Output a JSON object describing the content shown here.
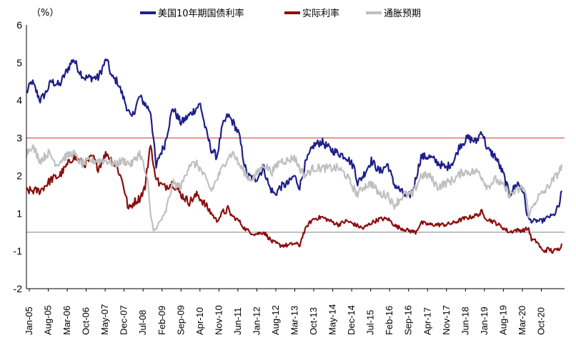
{
  "chart_data": {
    "type": "line",
    "unit_label": "（%）",
    "ylim": [
      -2,
      6
    ],
    "y_ticks": [
      6,
      5,
      4,
      3,
      2,
      1,
      -1,
      -2
    ],
    "x_tick_labels": [
      "Jan-05",
      "Aug-05",
      "Mar-06",
      "Oct-06",
      "May-07",
      "Dec-07",
      "Jul-08",
      "Feb-09",
      "Sep-09",
      "Apr-10",
      "Nov-10",
      "Jun-11",
      "Jan-12",
      "Aug-12",
      "Mar-13",
      "Oct-13",
      "May-14",
      "Dec-14",
      "Jul-15",
      "Feb-16",
      "Sep-16",
      "Apr-17",
      "Nov-17",
      "Jun-18",
      "Jan-19",
      "Aug-19",
      "Mar-20",
      "Oct-20"
    ],
    "x_range": [
      "2005-01",
      "2021-04"
    ],
    "legend_position": "top",
    "grid": false,
    "reference_lines": [
      {
        "value": 3.0,
        "color": "#e06666"
      },
      {
        "value": 0,
        "color": "#999999"
      }
    ],
    "series": [
      {
        "name": "美国10年期国债利率",
        "color": "#1f1f8a",
        "points": [
          [
            "2005-01",
            4.2
          ],
          [
            "2005-03",
            4.5
          ],
          [
            "2005-06",
            4.0
          ],
          [
            "2005-08",
            4.2
          ],
          [
            "2005-10",
            4.5
          ],
          [
            "2006-01",
            4.4
          ],
          [
            "2006-03",
            4.7
          ],
          [
            "2006-06",
            5.1
          ],
          [
            "2006-08",
            4.8
          ],
          [
            "2006-10",
            4.6
          ],
          [
            "2006-12",
            4.6
          ],
          [
            "2007-03",
            4.6
          ],
          [
            "2007-06",
            5.1
          ],
          [
            "2007-08",
            4.6
          ],
          [
            "2007-10",
            4.5
          ],
          [
            "2007-12",
            4.1
          ],
          [
            "2008-02",
            3.7
          ],
          [
            "2008-03",
            3.5
          ],
          [
            "2008-06",
            4.1
          ],
          [
            "2008-09",
            3.8
          ],
          [
            "2008-10",
            3.7
          ],
          [
            "2008-11",
            3.0
          ],
          [
            "2008-12",
            2.2
          ],
          [
            "2009-01",
            2.5
          ],
          [
            "2009-03",
            2.8
          ],
          [
            "2009-06",
            3.8
          ],
          [
            "2009-09",
            3.4
          ],
          [
            "2009-12",
            3.6
          ],
          [
            "2010-04",
            3.9
          ],
          [
            "2010-06",
            3.2
          ],
          [
            "2010-08",
            2.7
          ],
          [
            "2010-10",
            2.5
          ],
          [
            "2010-12",
            3.3
          ],
          [
            "2011-02",
            3.6
          ],
          [
            "2011-04",
            3.4
          ],
          [
            "2011-06",
            3.1
          ],
          [
            "2011-08",
            2.3
          ],
          [
            "2011-09",
            2.0
          ],
          [
            "2011-12",
            1.9
          ],
          [
            "2012-03",
            2.2
          ],
          [
            "2012-05",
            1.7
          ],
          [
            "2012-07",
            1.5
          ],
          [
            "2012-09",
            1.7
          ],
          [
            "2012-12",
            1.8
          ],
          [
            "2013-02",
            2.0
          ],
          [
            "2013-04",
            1.7
          ],
          [
            "2013-06",
            2.3
          ],
          [
            "2013-09",
            2.8
          ],
          [
            "2013-12",
            2.9
          ],
          [
            "2014-03",
            2.7
          ],
          [
            "2014-06",
            2.6
          ],
          [
            "2014-09",
            2.5
          ],
          [
            "2014-12",
            2.2
          ],
          [
            "2015-01",
            1.8
          ],
          [
            "2015-03",
            2.0
          ],
          [
            "2015-06",
            2.4
          ],
          [
            "2015-09",
            2.1
          ],
          [
            "2015-12",
            2.3
          ],
          [
            "2016-02",
            1.8
          ],
          [
            "2016-07",
            1.4
          ],
          [
            "2016-09",
            1.6
          ],
          [
            "2016-12",
            2.5
          ],
          [
            "2017-03",
            2.5
          ],
          [
            "2017-09",
            2.2
          ],
          [
            "2017-12",
            2.4
          ],
          [
            "2018-02",
            2.8
          ],
          [
            "2018-05",
            3.0
          ],
          [
            "2018-08",
            2.9
          ],
          [
            "2018-10",
            3.2
          ],
          [
            "2018-12",
            2.7
          ],
          [
            "2019-03",
            2.5
          ],
          [
            "2019-06",
            2.0
          ],
          [
            "2019-08",
            1.5
          ],
          [
            "2019-11",
            1.8
          ],
          [
            "2020-01",
            1.6
          ],
          [
            "2020-03",
            0.7
          ],
          [
            "2020-04",
            0.6
          ],
          [
            "2020-08",
            0.6
          ],
          [
            "2020-10",
            0.8
          ],
          [
            "2020-12",
            0.9
          ],
          [
            "2021-02",
            1.2
          ],
          [
            "2021-03",
            1.6
          ]
        ]
      },
      {
        "name": "实际利率",
        "color": "#8b0f0f",
        "points": [
          [
            "2005-01",
            1.6
          ],
          [
            "2005-06",
            1.6
          ],
          [
            "2005-10",
            1.9
          ],
          [
            "2006-01",
            2.0
          ],
          [
            "2006-06",
            2.5
          ],
          [
            "2006-10",
            2.3
          ],
          [
            "2007-01",
            2.5
          ],
          [
            "2007-03",
            2.2
          ],
          [
            "2007-06",
            2.6
          ],
          [
            "2007-08",
            2.4
          ],
          [
            "2007-10",
            2.2
          ],
          [
            "2007-12",
            1.8
          ],
          [
            "2008-02",
            1.1
          ],
          [
            "2008-04",
            1.3
          ],
          [
            "2008-06",
            1.4
          ],
          [
            "2008-08",
            1.7
          ],
          [
            "2008-10",
            2.9
          ],
          [
            "2008-11",
            2.2
          ],
          [
            "2009-01",
            1.8
          ],
          [
            "2009-03",
            1.7
          ],
          [
            "2009-06",
            1.8
          ],
          [
            "2009-09",
            1.5
          ],
          [
            "2009-12",
            1.3
          ],
          [
            "2010-03",
            1.5
          ],
          [
            "2010-06",
            1.2
          ],
          [
            "2010-08",
            1.0
          ],
          [
            "2010-10",
            0.6
          ],
          [
            "2010-12",
            1.0
          ],
          [
            "2011-02",
            1.1
          ],
          [
            "2011-04",
            0.8
          ],
          [
            "2011-06",
            0.6
          ],
          [
            "2011-08",
            0.2
          ],
          [
            "2011-10",
            0.0
          ],
          [
            "2011-12",
            -0.1
          ],
          [
            "2012-03",
            0.0
          ],
          [
            "2012-06",
            -0.5
          ],
          [
            "2012-09",
            -0.7
          ],
          [
            "2012-12",
            -0.7
          ],
          [
            "2013-02",
            -0.6
          ],
          [
            "2013-04",
            -0.7
          ],
          [
            "2013-05",
            -0.2
          ],
          [
            "2013-07",
            0.4
          ],
          [
            "2013-09",
            0.7
          ],
          [
            "2013-12",
            0.8
          ],
          [
            "2014-03",
            0.6
          ],
          [
            "2014-06",
            0.4
          ],
          [
            "2014-09",
            0.6
          ],
          [
            "2014-12",
            0.4
          ],
          [
            "2015-03",
            0.2
          ],
          [
            "2015-06",
            0.5
          ],
          [
            "2015-09",
            0.7
          ],
          [
            "2015-12",
            0.7
          ],
          [
            "2016-03",
            0.3
          ],
          [
            "2016-07",
            0.1
          ],
          [
            "2016-10",
            0.0
          ],
          [
            "2016-12",
            0.5
          ],
          [
            "2017-03",
            0.4
          ],
          [
            "2017-06",
            0.4
          ],
          [
            "2017-09",
            0.4
          ],
          [
            "2017-12",
            0.5
          ],
          [
            "2018-03",
            0.7
          ],
          [
            "2018-06",
            0.8
          ],
          [
            "2018-10",
            1.0
          ],
          [
            "2018-12",
            0.7
          ],
          [
            "2019-03",
            0.5
          ],
          [
            "2019-06",
            0.2
          ],
          [
            "2019-08",
            0.0
          ],
          [
            "2019-10",
            0.1
          ],
          [
            "2020-01",
            0.1
          ],
          [
            "2020-03",
            0.2
          ],
          [
            "2020-04",
            -0.4
          ],
          [
            "2020-06",
            -0.5
          ],
          [
            "2020-08",
            -1.0
          ],
          [
            "2020-10",
            -0.9
          ],
          [
            "2020-12",
            -1.0
          ],
          [
            "2021-02",
            -0.9
          ],
          [
            "2021-03",
            -0.6
          ]
        ]
      },
      {
        "name": "通胀预期",
        "color": "#c0c0c0",
        "points": [
          [
            "2005-01",
            2.6
          ],
          [
            "2005-03",
            2.8
          ],
          [
            "2005-06",
            2.4
          ],
          [
            "2005-09",
            2.6
          ],
          [
            "2005-12",
            2.3
          ],
          [
            "2006-03",
            2.5
          ],
          [
            "2006-06",
            2.6
          ],
          [
            "2006-09",
            2.3
          ],
          [
            "2006-12",
            2.4
          ],
          [
            "2007-03",
            2.4
          ],
          [
            "2007-06",
            2.4
          ],
          [
            "2007-09",
            2.3
          ],
          [
            "2007-12",
            2.4
          ],
          [
            "2008-03",
            2.3
          ],
          [
            "2008-06",
            2.6
          ],
          [
            "2008-07",
            2.4
          ],
          [
            "2008-09",
            1.8
          ],
          [
            "2008-10",
            0.9
          ],
          [
            "2008-11",
            0.2
          ],
          [
            "2008-12",
            0.1
          ],
          [
            "2009-01",
            0.5
          ],
          [
            "2009-03",
            0.9
          ],
          [
            "2009-06",
            1.8
          ],
          [
            "2009-09",
            1.7
          ],
          [
            "2009-12",
            2.3
          ],
          [
            "2010-03",
            2.3
          ],
          [
            "2010-06",
            1.9
          ],
          [
            "2010-08",
            1.6
          ],
          [
            "2010-10",
            1.9
          ],
          [
            "2010-12",
            2.2
          ],
          [
            "2011-02",
            2.5
          ],
          [
            "2011-04",
            2.6
          ],
          [
            "2011-06",
            2.3
          ],
          [
            "2011-08",
            2.1
          ],
          [
            "2011-10",
            1.9
          ],
          [
            "2011-12",
            2.0
          ],
          [
            "2012-03",
            2.3
          ],
          [
            "2012-06",
            2.1
          ],
          [
            "2012-09",
            2.4
          ],
          [
            "2012-12",
            2.4
          ],
          [
            "2013-02",
            2.5
          ],
          [
            "2013-04",
            2.2
          ],
          [
            "2013-06",
            2.0
          ],
          [
            "2013-09",
            2.2
          ],
          [
            "2013-12",
            2.2
          ],
          [
            "2014-03",
            2.2
          ],
          [
            "2014-06",
            2.2
          ],
          [
            "2014-09",
            2.0
          ],
          [
            "2014-12",
            1.6
          ],
          [
            "2015-01",
            1.5
          ],
          [
            "2015-03",
            1.7
          ],
          [
            "2015-06",
            1.8
          ],
          [
            "2015-09",
            1.5
          ],
          [
            "2015-12",
            1.5
          ],
          [
            "2016-02",
            1.2
          ],
          [
            "2016-06",
            1.5
          ],
          [
            "2016-09",
            1.5
          ],
          [
            "2016-12",
            2.0
          ],
          [
            "2017-03",
            2.0
          ],
          [
            "2017-06",
            1.7
          ],
          [
            "2017-09",
            1.8
          ],
          [
            "2017-12",
            1.9
          ],
          [
            "2018-03",
            2.1
          ],
          [
            "2018-06",
            2.1
          ],
          [
            "2018-09",
            2.1
          ],
          [
            "2018-12",
            1.7
          ],
          [
            "2019-03",
            1.9
          ],
          [
            "2019-06",
            1.7
          ],
          [
            "2019-08",
            1.5
          ],
          [
            "2019-11",
            1.6
          ],
          [
            "2020-01",
            1.7
          ],
          [
            "2020-02",
            1.5
          ],
          [
            "2020-03",
            0.9
          ],
          [
            "2020-04",
            1.1
          ],
          [
            "2020-06",
            1.4
          ],
          [
            "2020-09",
            1.6
          ],
          [
            "2020-12",
            1.9
          ],
          [
            "2021-02",
            2.1
          ],
          [
            "2021-03",
            2.3
          ]
        ]
      }
    ]
  }
}
